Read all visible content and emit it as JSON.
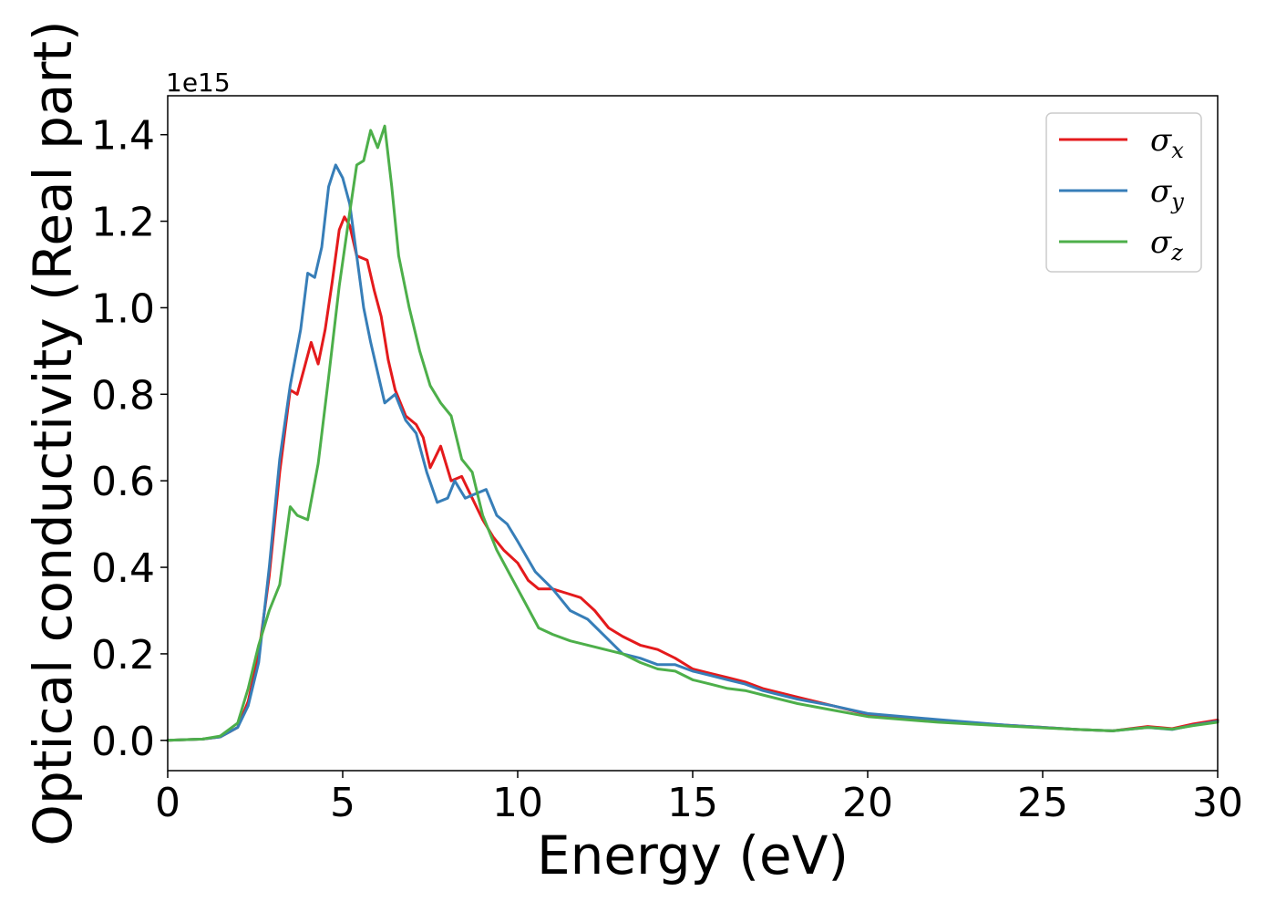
{
  "chart_data": {
    "type": "line",
    "xlabel": "Energy (eV)",
    "ylabel": "Optical conductivity (Real part)",
    "y_offset_text": "1e15",
    "xlim": [
      0,
      30
    ],
    "ylim": [
      -0.07,
      1.49
    ],
    "x_ticks": [
      0,
      5,
      10,
      15,
      20,
      25,
      30
    ],
    "x_tick_labels": [
      "0",
      "5",
      "10",
      "15",
      "20",
      "25",
      "30"
    ],
    "y_ticks": [
      0.0,
      0.2,
      0.4,
      0.6,
      0.8,
      1.0,
      1.2,
      1.4
    ],
    "y_tick_labels": [
      "0.0",
      "0.2",
      "0.4",
      "0.6",
      "0.8",
      "1.0",
      "1.2",
      "1.4"
    ],
    "grid": false,
    "legend_position": "top-right",
    "series": [
      {
        "name": "σx",
        "symbol": "σ",
        "subscript": "x",
        "color": "#e41a1c",
        "points": [
          [
            0,
            0
          ],
          [
            1,
            0.003
          ],
          [
            1.5,
            0.008
          ],
          [
            2,
            0.03
          ],
          [
            2.3,
            0.09
          ],
          [
            2.6,
            0.2
          ],
          [
            2.9,
            0.38
          ],
          [
            3.2,
            0.62
          ],
          [
            3.5,
            0.81
          ],
          [
            3.7,
            0.8
          ],
          [
            3.9,
            0.86
          ],
          [
            4.1,
            0.92
          ],
          [
            4.3,
            0.87
          ],
          [
            4.5,
            0.95
          ],
          [
            4.7,
            1.06
          ],
          [
            4.9,
            1.18
          ],
          [
            5.05,
            1.21
          ],
          [
            5.2,
            1.19
          ],
          [
            5.4,
            1.12
          ],
          [
            5.7,
            1.11
          ],
          [
            5.9,
            1.04
          ],
          [
            6.1,
            0.98
          ],
          [
            6.3,
            0.88
          ],
          [
            6.5,
            0.81
          ],
          [
            6.8,
            0.75
          ],
          [
            7.1,
            0.73
          ],
          [
            7.3,
            0.7
          ],
          [
            7.5,
            0.63
          ],
          [
            7.8,
            0.68
          ],
          [
            8.1,
            0.6
          ],
          [
            8.4,
            0.61
          ],
          [
            8.7,
            0.56
          ],
          [
            9.0,
            0.51
          ],
          [
            9.3,
            0.47
          ],
          [
            9.6,
            0.44
          ],
          [
            10.0,
            0.41
          ],
          [
            10.3,
            0.37
          ],
          [
            10.6,
            0.35
          ],
          [
            11.0,
            0.35
          ],
          [
            11.4,
            0.34
          ],
          [
            11.8,
            0.33
          ],
          [
            12.2,
            0.3
          ],
          [
            12.6,
            0.26
          ],
          [
            13.0,
            0.24
          ],
          [
            13.5,
            0.22
          ],
          [
            14.0,
            0.21
          ],
          [
            14.5,
            0.19
          ],
          [
            15.0,
            0.165
          ],
          [
            15.5,
            0.155
          ],
          [
            16.0,
            0.145
          ],
          [
            16.5,
            0.135
          ],
          [
            17.0,
            0.12
          ],
          [
            18.0,
            0.1
          ],
          [
            19.0,
            0.08
          ],
          [
            20.0,
            0.06
          ],
          [
            22.0,
            0.045
          ],
          [
            24.0,
            0.035
          ],
          [
            26.0,
            0.025
          ],
          [
            27.0,
            0.022
          ],
          [
            28.0,
            0.032
          ],
          [
            28.7,
            0.027
          ],
          [
            29.3,
            0.038
          ],
          [
            30.0,
            0.047
          ]
        ]
      },
      {
        "name": "σy",
        "symbol": "σ",
        "subscript": "y",
        "color": "#377eb8",
        "points": [
          [
            0,
            0
          ],
          [
            1,
            0.003
          ],
          [
            1.5,
            0.008
          ],
          [
            2,
            0.03
          ],
          [
            2.3,
            0.08
          ],
          [
            2.6,
            0.18
          ],
          [
            2.9,
            0.4
          ],
          [
            3.2,
            0.65
          ],
          [
            3.5,
            0.82
          ],
          [
            3.8,
            0.95
          ],
          [
            4.0,
            1.08
          ],
          [
            4.2,
            1.07
          ],
          [
            4.4,
            1.14
          ],
          [
            4.6,
            1.28
          ],
          [
            4.8,
            1.33
          ],
          [
            5.0,
            1.3
          ],
          [
            5.2,
            1.24
          ],
          [
            5.4,
            1.12
          ],
          [
            5.6,
            1.0
          ],
          [
            5.8,
            0.92
          ],
          [
            6.0,
            0.85
          ],
          [
            6.2,
            0.78
          ],
          [
            6.5,
            0.8
          ],
          [
            6.8,
            0.74
          ],
          [
            7.1,
            0.71
          ],
          [
            7.4,
            0.62
          ],
          [
            7.7,
            0.55
          ],
          [
            8.0,
            0.56
          ],
          [
            8.2,
            0.6
          ],
          [
            8.5,
            0.56
          ],
          [
            8.8,
            0.57
          ],
          [
            9.1,
            0.58
          ],
          [
            9.4,
            0.52
          ],
          [
            9.7,
            0.5
          ],
          [
            10.0,
            0.46
          ],
          [
            10.5,
            0.39
          ],
          [
            11.0,
            0.35
          ],
          [
            11.5,
            0.3
          ],
          [
            12.0,
            0.28
          ],
          [
            12.5,
            0.24
          ],
          [
            13.0,
            0.2
          ],
          [
            13.5,
            0.19
          ],
          [
            14.0,
            0.175
          ],
          [
            14.5,
            0.175
          ],
          [
            15.0,
            0.16
          ],
          [
            15.5,
            0.15
          ],
          [
            16.0,
            0.14
          ],
          [
            16.5,
            0.13
          ],
          [
            17.0,
            0.115
          ],
          [
            18.0,
            0.095
          ],
          [
            19.0,
            0.08
          ],
          [
            20.0,
            0.062
          ],
          [
            22.0,
            0.048
          ],
          [
            24.0,
            0.035
          ],
          [
            26.0,
            0.025
          ],
          [
            27.0,
            0.022
          ],
          [
            28.0,
            0.03
          ],
          [
            28.7,
            0.025
          ],
          [
            29.3,
            0.035
          ],
          [
            30.0,
            0.044
          ]
        ]
      },
      {
        "name": "σz",
        "symbol": "σ",
        "subscript": "z",
        "color": "#4daf4a",
        "points": [
          [
            0,
            0
          ],
          [
            1,
            0.003
          ],
          [
            1.5,
            0.01
          ],
          [
            2,
            0.04
          ],
          [
            2.3,
            0.12
          ],
          [
            2.6,
            0.22
          ],
          [
            2.9,
            0.3
          ],
          [
            3.2,
            0.36
          ],
          [
            3.5,
            0.54
          ],
          [
            3.7,
            0.52
          ],
          [
            4.0,
            0.51
          ],
          [
            4.3,
            0.64
          ],
          [
            4.6,
            0.84
          ],
          [
            4.9,
            1.05
          ],
          [
            5.2,
            1.22
          ],
          [
            5.4,
            1.33
          ],
          [
            5.6,
            1.34
          ],
          [
            5.8,
            1.41
          ],
          [
            6.0,
            1.37
          ],
          [
            6.2,
            1.42
          ],
          [
            6.4,
            1.28
          ],
          [
            6.6,
            1.12
          ],
          [
            6.9,
            1.0
          ],
          [
            7.2,
            0.9
          ],
          [
            7.5,
            0.82
          ],
          [
            7.8,
            0.78
          ],
          [
            8.1,
            0.75
          ],
          [
            8.4,
            0.65
          ],
          [
            8.7,
            0.62
          ],
          [
            9.0,
            0.52
          ],
          [
            9.4,
            0.44
          ],
          [
            9.8,
            0.38
          ],
          [
            10.2,
            0.32
          ],
          [
            10.6,
            0.26
          ],
          [
            11.0,
            0.245
          ],
          [
            11.5,
            0.23
          ],
          [
            12.0,
            0.22
          ],
          [
            12.5,
            0.21
          ],
          [
            13.0,
            0.2
          ],
          [
            13.5,
            0.18
          ],
          [
            14.0,
            0.165
          ],
          [
            14.5,
            0.16
          ],
          [
            15.0,
            0.14
          ],
          [
            15.5,
            0.13
          ],
          [
            16.0,
            0.12
          ],
          [
            16.5,
            0.115
          ],
          [
            17.0,
            0.105
          ],
          [
            18.0,
            0.085
          ],
          [
            19.0,
            0.07
          ],
          [
            20.0,
            0.055
          ],
          [
            22.0,
            0.042
          ],
          [
            24.0,
            0.033
          ],
          [
            26.0,
            0.025
          ],
          [
            27.0,
            0.022
          ],
          [
            28.0,
            0.03
          ],
          [
            28.7,
            0.026
          ],
          [
            29.3,
            0.034
          ],
          [
            30.0,
            0.042
          ]
        ]
      }
    ]
  }
}
